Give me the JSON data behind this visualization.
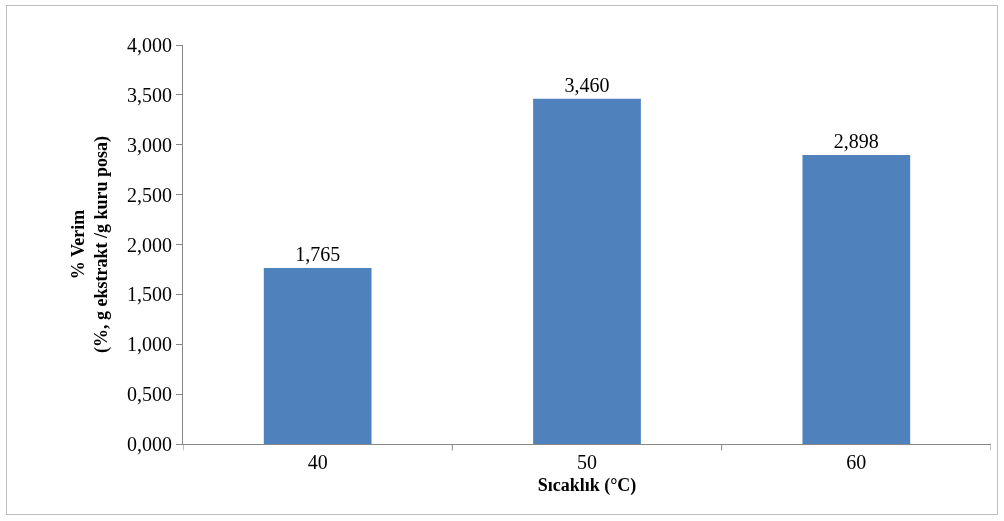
{
  "chart_data": {
    "type": "bar",
    "xlabel": "Sıcaklık (°C)",
    "ylabel": "% Verim\n(%, g ekstrakt /g kuru posa)",
    "categories": [
      "40",
      "50",
      "60"
    ],
    "values": [
      1.765,
      3.46,
      2.898
    ],
    "value_labels": [
      "1,765",
      "3,460",
      "2,898"
    ],
    "color": "#4f81bd",
    "ylim": [
      0,
      4
    ],
    "yticks": [
      {
        "value": 0,
        "label": "0,000"
      },
      {
        "value": 0.5,
        "label": "0,500"
      },
      {
        "value": 1,
        "label": "1,000"
      },
      {
        "value": 1.5,
        "label": "1,500"
      },
      {
        "value": 2,
        "label": "2,000"
      },
      {
        "value": 2.5,
        "label": "2,500"
      },
      {
        "value": 3,
        "label": "3,000"
      },
      {
        "value": 3.5,
        "label": "3,500"
      },
      {
        "value": 4,
        "label": "4,000"
      }
    ],
    "grid": false
  }
}
